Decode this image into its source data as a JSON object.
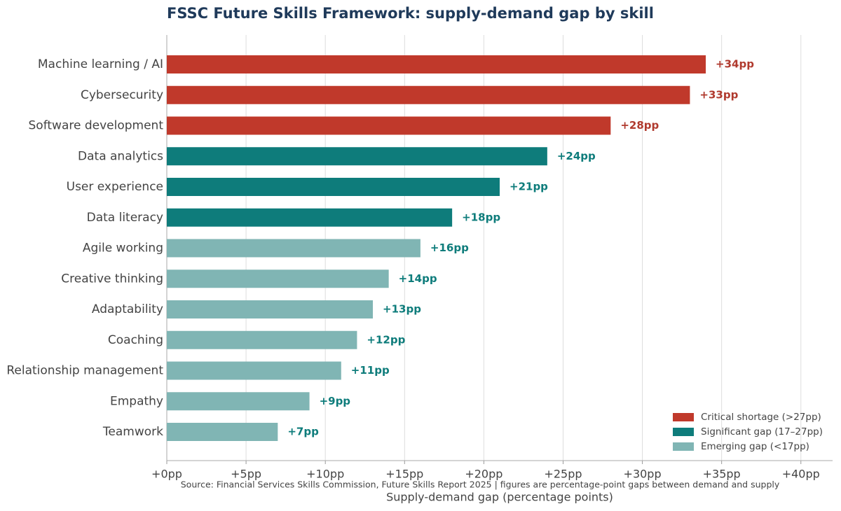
{
  "chart_data": {
    "type": "bar",
    "orientation": "horizontal",
    "title": "FSSC Future Skills Framework: supply-demand gap by skill",
    "categories": [
      "Machine learning / AI",
      "Cybersecurity",
      "Software development",
      "Data analytics",
      "User experience",
      "Data literacy",
      "Agile working",
      "Creative thinking",
      "Adaptability",
      "Coaching",
      "Relationship management",
      "Empathy",
      "Teamwork"
    ],
    "series": [
      {
        "name": "Critical shortage (>27pp)",
        "color": "#c0392b",
        "label_color": "#b03a2e",
        "values": [
          34,
          33,
          28,
          null,
          null,
          null,
          null,
          null,
          null,
          null,
          null,
          null,
          null
        ],
        "value_labels": [
          "+34pp",
          "+33pp",
          "+28pp",
          null,
          null,
          null,
          null,
          null,
          null,
          null,
          null,
          null,
          null
        ]
      },
      {
        "name": "Significant gap (17–27pp)",
        "color": "#0e7c7b",
        "label_color": "#0e7c7b",
        "values": [
          null,
          null,
          null,
          24,
          21,
          18,
          null,
          null,
          null,
          null,
          null,
          null,
          null
        ],
        "value_labels": [
          null,
          null,
          null,
          "+24pp",
          "+21pp",
          "+18pp",
          null,
          null,
          null,
          null,
          null,
          null,
          null
        ]
      },
      {
        "name": "Emerging gap (<17pp)",
        "color": "#80b5b4",
        "label_color": "#0e7c7b",
        "values": [
          null,
          null,
          null,
          null,
          null,
          null,
          16,
          14,
          13,
          12,
          11,
          9,
          7
        ],
        "value_labels": [
          null,
          null,
          null,
          null,
          null,
          null,
          "+16pp",
          "+14pp",
          "+13pp",
          "+12pp",
          "+11pp",
          "+9pp",
          "+7pp"
        ]
      }
    ],
    "xlabel": "Supply-demand gap (percentage points)",
    "source": "Source: Financial Services Skills Commission, Future Skills Report 2025  |  figures are percentage-point gaps between demand and supply",
    "xlim": [
      0,
      42
    ],
    "xticks": [
      {
        "value": 0,
        "label": "+0pp"
      },
      {
        "value": 5,
        "label": "+5pp"
      },
      {
        "value": 10,
        "label": "+10pp"
      },
      {
        "value": 15,
        "label": "+15pp"
      },
      {
        "value": 20,
        "label": "+20pp"
      },
      {
        "value": 25,
        "label": "+25pp"
      },
      {
        "value": 30,
        "label": "+30pp"
      },
      {
        "value": 35,
        "label": "+35pp"
      },
      {
        "value": 40,
        "label": "+40pp"
      }
    ],
    "grid": true,
    "legend": "lower right"
  }
}
